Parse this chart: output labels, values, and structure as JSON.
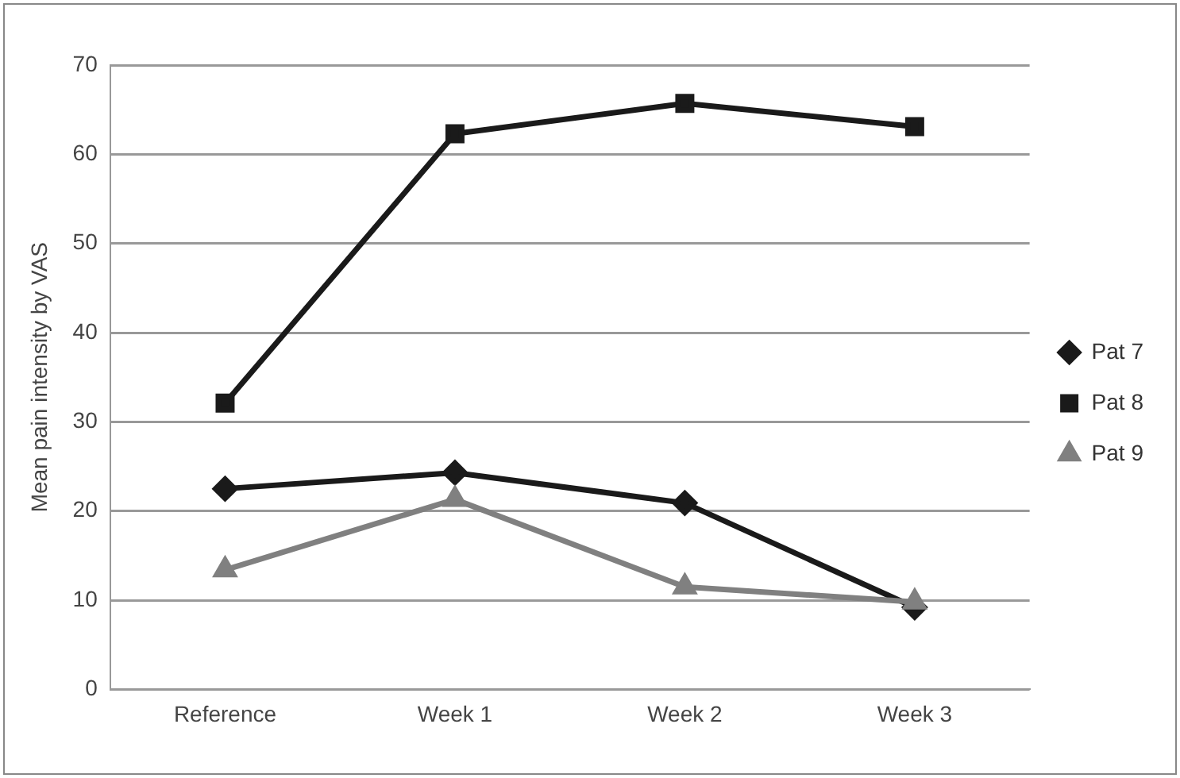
{
  "chart_data": {
    "type": "line",
    "ylabel": "Mean pain intensity by VAS",
    "categories": [
      "Reference",
      "Week 1",
      "Week 2",
      "Week 3"
    ],
    "series": [
      {
        "name": "Pat 7",
        "color": "#1a1a1a",
        "marker": "diamond",
        "values": [
          22.5,
          24.3,
          20.9,
          9.2
        ]
      },
      {
        "name": "Pat 8",
        "color": "#1a1a1a",
        "marker": "square",
        "values": [
          32.1,
          62.3,
          65.7,
          63.1
        ]
      },
      {
        "name": "Pat 9",
        "color": "#808080",
        "marker": "triangle",
        "values": [
          13.4,
          21.3,
          11.5,
          9.8
        ]
      }
    ],
    "ylim": [
      0,
      70
    ],
    "yticks": [
      0,
      10,
      20,
      30,
      40,
      50,
      60,
      70
    ],
    "grid": "y",
    "legend": "right",
    "line_style": "solid"
  }
}
